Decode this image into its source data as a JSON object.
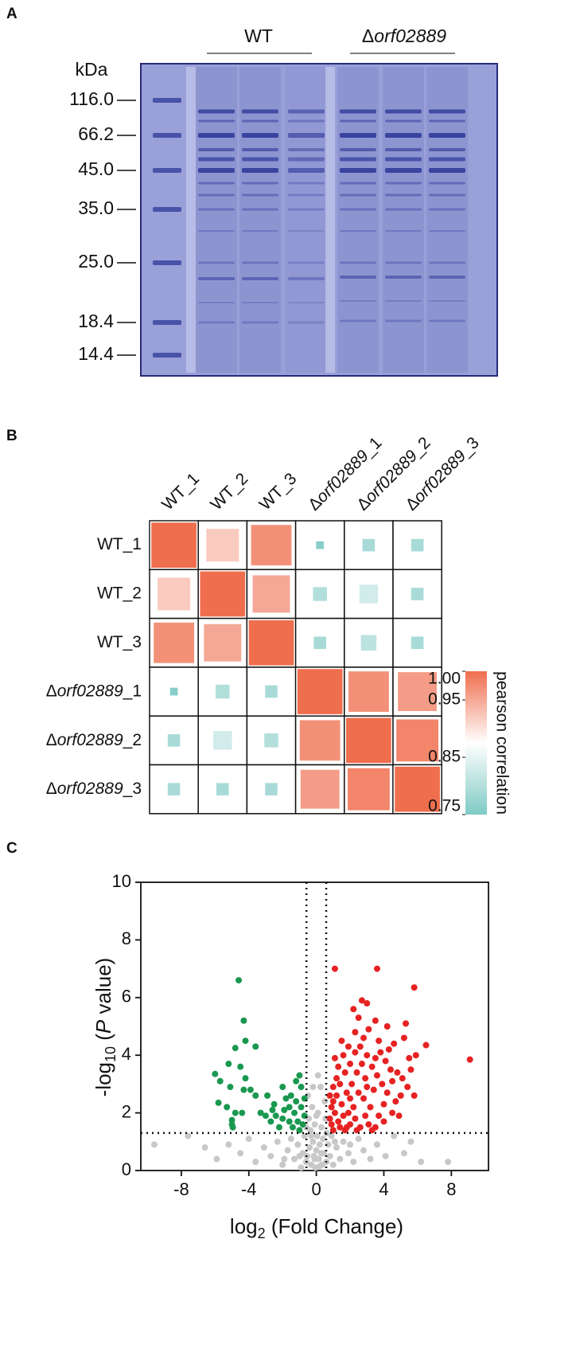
{
  "panel_labels": [
    "A",
    "B",
    "C"
  ],
  "gel": {
    "groups": [
      {
        "label": "WT"
      },
      {
        "label": "Δorf02889"
      }
    ],
    "unit": "kDa",
    "markers": [
      {
        "value": 116,
        "label": "116.0"
      },
      66.2,
      {
        "value": 45,
        "label": "45.0"
      },
      {
        "value": 35,
        "label": "35.0"
      },
      {
        "value": 25,
        "label": "25.0"
      },
      18.4,
      14.4
    ]
  },
  "chart_data": [
    {
      "type": "heatmap",
      "rows": [
        "WT_1",
        "WT_2",
        "WT_3",
        "Δorf02889_1",
        "Δorf02889_2",
        "Δorf02889_3"
      ],
      "columns": [
        "WT_1",
        "WT_2",
        "WT_3",
        "Δorf02889_1",
        "Δorf02889_2",
        "Δorf02889_3"
      ],
      "values": [
        [
          1.0,
          0.92,
          0.97,
          0.76,
          0.79,
          0.79
        ],
        [
          0.92,
          1.0,
          0.95,
          0.8,
          0.83,
          0.79
        ],
        [
          0.97,
          0.95,
          1.0,
          0.79,
          0.81,
          0.79
        ],
        [
          0.76,
          0.8,
          0.79,
          1.0,
          0.97,
          0.96
        ],
        [
          0.79,
          0.83,
          0.8,
          0.97,
          1.0,
          0.98
        ],
        [
          0.79,
          0.79,
          0.79,
          0.96,
          0.98,
          1.0
        ]
      ],
      "clim": [
        0.75,
        1.0
      ],
      "colors": [
        "#7fcac4",
        "#ffffff",
        "#ef6e4e"
      ],
      "size_encoding": true,
      "colorbar_ticks": [
        {
          "value": 1,
          "label": "1.00"
        },
        0.95,
        0.85,
        0.75
      ],
      "colorbar_label": "pearson correlation"
    },
    {
      "type": "scatter",
      "xlabel": [
        "log",
        "2",
        " (Fold Change)"
      ],
      "ylabel": [
        "-log",
        "10",
        " (",
        "P",
        " value)"
      ],
      "xlim": [
        -10.4,
        10.2
      ],
      "ylim": [
        0,
        10
      ],
      "xticks": [
        -8,
        -4,
        0,
        4,
        8
      ],
      "yticks": [
        0,
        2,
        4,
        6,
        8,
        10
      ],
      "thresholds": {
        "x": [
          -0.585,
          0.585
        ],
        "y": 1.301
      },
      "series": [
        {
          "color": "#c8c8c8",
          "x": [
            -9.6,
            -7.6,
            -6.6,
            -5.9,
            -5.2,
            -4.5,
            -4.0,
            -3.6,
            -3.1,
            -2.7,
            -2.3,
            -2.0,
            -1.7,
            -1.5,
            -1.3,
            -1.1,
            -0.9,
            -0.8,
            -0.7,
            -0.6,
            -0.5,
            -0.45,
            -0.4,
            -0.35,
            -0.3,
            -0.25,
            -0.2,
            -0.15,
            -0.1,
            -0.05,
            0,
            0.05,
            0.1,
            0.15,
            0.2,
            0.25,
            0.3,
            0.35,
            0.4,
            0.45,
            0.5,
            0.55,
            0.6,
            0.7,
            0.8,
            0.9,
            1.0,
            1.2,
            1.4,
            1.6,
            1.9,
            2.2,
            2.5,
            2.8,
            3.2,
            3.6,
            4.1,
            4.6,
            5.2,
            5.6,
            6.2,
            7.8,
            -0.55,
            -0.3,
            0.2,
            -0.1,
            0.3,
            -0.2,
            0.1,
            0.0,
            -0.6,
            0.6,
            -1.0,
            1.1,
            -1.9,
            2.0
          ],
          "values": [
            0.9,
            1.2,
            0.8,
            0.4,
            0.9,
            0.6,
            1.1,
            0.3,
            0.8,
            0.5,
            1.0,
            0.2,
            0.7,
            1.1,
            0.4,
            0.9,
            0.1,
            0.6,
            1.2,
            0.3,
            2.6,
            1.8,
            0.8,
            1.4,
            0.2,
            2.2,
            1.0,
            0.5,
            1.6,
            0.1,
            0.7,
            1.2,
            2.0,
            0.4,
            0.9,
            2.9,
            1.5,
            0.2,
            1.1,
            0.6,
            2.4,
            1.8,
            0.3,
            0.9,
            0.5,
            1.2,
            0.2,
            0.8,
            0.4,
            1.0,
            0.6,
            0.3,
            1.1,
            0.7,
            0.4,
            0.9,
            0.5,
            1.2,
            0.6,
            1.0,
            0.3,
            0.3,
            0.5,
            1.2,
            0.15,
            0.4,
            0.6,
            2.9,
            3.3,
            1.9,
            1.5,
            1.3,
            0.5,
            1.0,
            0.4,
            0.9
          ]
        },
        {
          "color": "#1a9850",
          "x": [
            -4.6,
            -4.3,
            -4.2,
            -4.8,
            -3.6,
            -5.2,
            -4.5,
            -6.0,
            -5.7,
            -4.2,
            -3.9,
            -5.1,
            -4.3,
            -3.6,
            -5.8,
            -5.3,
            -4.8,
            -4.4,
            -5.0,
            -5.0,
            -4.95,
            -2.9,
            -2.5,
            -2.0,
            -1.8,
            -1.5,
            -1.2,
            -1.0,
            -0.9,
            -3.0,
            -2.7,
            -2.4,
            -2.2,
            -2.0,
            -1.9,
            -1.6,
            -1.4,
            -1.3,
            -1.1,
            -0.9,
            -0.8,
            -0.7,
            -1.6,
            -2.6,
            -3.3,
            -1.0,
            -0.7,
            -1.2
          ],
          "values": [
            6.6,
            5.2,
            4.5,
            4.25,
            4.3,
            3.7,
            3.6,
            3.35,
            3.1,
            3.2,
            2.8,
            2.9,
            2.8,
            2.6,
            2.35,
            2.2,
            2.0,
            2.0,
            1.6,
            1.75,
            1.5,
            2.6,
            2.3,
            2.9,
            2.5,
            2.6,
            3.1,
            3.3,
            2.9,
            1.9,
            1.7,
            1.9,
            1.5,
            1.8,
            2.1,
            1.7,
            1.5,
            2.0,
            1.7,
            2.2,
            1.6,
            1.9,
            2.2,
            2.1,
            2.0,
            1.4,
            2.5,
            2.4
          ]
        },
        {
          "color": "#e62222",
          "x": [
            1.1,
            3.6,
            5.8,
            2.7,
            3.0,
            2.2,
            2.5,
            5.3,
            4.2,
            3.5,
            9.1,
            6.5,
            5.9,
            5.5,
            5.1,
            5.6,
            5.8,
            5.0,
            4.5,
            4.0,
            3.5,
            4.9,
            4.3,
            3.7,
            3.1,
            2.8,
            2.3,
            1.9,
            1.6,
            1.3,
            1.2,
            1.0,
            1.0,
            1.1,
            0.9,
            0.8,
            1.4,
            1.7,
            2.0,
            2.3,
            2.6,
            2.9,
            3.2,
            1.5,
            1.8,
            2.1,
            2.4,
            2.7,
            3.0,
            3.3,
            3.6,
            3.9,
            4.2,
            4.5,
            4.8,
            4.1,
            3.4,
            2.8,
            2.2,
            1.6,
            1.2,
            1.4,
            1.7,
            2.0,
            2.3,
            2.6,
            3.8,
            4.6,
            5.2,
            4.0,
            3.7,
            3.1,
            2.5,
            1.9,
            1.3,
            0.9,
            1.1,
            1.5,
            2.9,
            3.5,
            4.4,
            5.4,
            4.7,
            3.0,
            2.0,
            1.8,
            2.4,
            3.3,
            1.0,
            0.8
          ],
          "values": [
            7.0,
            7.0,
            6.35,
            5.9,
            5.8,
            5.6,
            5.3,
            5.1,
            5.0,
            5.2,
            3.85,
            4.35,
            4.0,
            3.9,
            3.2,
            3.5,
            2.6,
            2.6,
            2.0,
            1.7,
            1.5,
            1.9,
            4.2,
            4.5,
            4.9,
            4.6,
            4.8,
            4.3,
            4.0,
            3.6,
            3.2,
            2.9,
            2.4,
            2.0,
            1.6,
            1.8,
            1.5,
            1.4,
            1.6,
            1.8,
            1.5,
            1.9,
            2.2,
            2.3,
            2.7,
            3.0,
            3.4,
            3.7,
            4.0,
            3.6,
            3.3,
            3.0,
            2.7,
            3.1,
            3.4,
            3.8,
            2.8,
            2.5,
            2.2,
            1.9,
            2.6,
            3.0,
            3.4,
            3.7,
            4.1,
            4.3,
            4.1,
            4.4,
            4.6,
            2.3,
            1.9,
            1.6,
            2.7,
            2.0,
            1.7,
            2.2,
            3.9,
            4.5,
            3.2,
            3.9,
            3.5,
            2.9,
            2.4,
            2.9,
            2.5,
            1.5,
            1.4,
            1.4,
            1.4,
            2.6
          ]
        }
      ]
    }
  ]
}
